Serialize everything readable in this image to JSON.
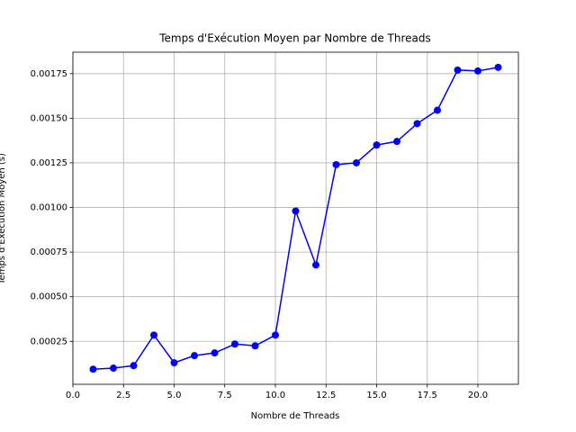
{
  "chart_data": {
    "type": "line",
    "title": "Temps d'Exécution Moyen par Nombre de Threads",
    "x_label": "Nombre de Threads",
    "y_label": "Temps d'Exécution Moyen (s)",
    "x": [
      1,
      2,
      3,
      4,
      5,
      6,
      7,
      8,
      9,
      10,
      11,
      12,
      13,
      14,
      15,
      16,
      17,
      18,
      19,
      20,
      21
    ],
    "series": [
      {
        "color": "#0000ff",
        "marker": "circle",
        "values": [
          9.4e-05,
          0.0001,
          0.000114,
          0.000285,
          0.00013,
          0.00017,
          0.000185,
          0.000235,
          0.000225,
          0.000285,
          0.00098,
          0.000678,
          0.00124,
          0.00125,
          0.00135,
          0.00137,
          0.00147,
          0.001545,
          0.00177,
          0.001765,
          0.001785
        ]
      }
    ],
    "xlim": [
      0,
      22
    ],
    "xticks": [
      {
        "value": 0,
        "label": "0.0"
      },
      2.5,
      {
        "value": 5,
        "label": "5.0"
      },
      7.5,
      {
        "value": 10,
        "label": "10.0"
      },
      12.5,
      {
        "value": 15,
        "label": "15.0"
      },
      17.5,
      {
        "value": 20,
        "label": "20.0"
      }
    ],
    "ylim": [
      9.4e-06,
      0.00187
    ],
    "yticks": [
      0.00025,
      {
        "value": 0.0005,
        "label": "0.00050"
      },
      0.00075,
      {
        "value": 0.001,
        "label": "0.00100"
      },
      0.00125,
      {
        "value": 0.0015,
        "label": "0.00150"
      },
      0.00175
    ],
    "grid": true
  }
}
